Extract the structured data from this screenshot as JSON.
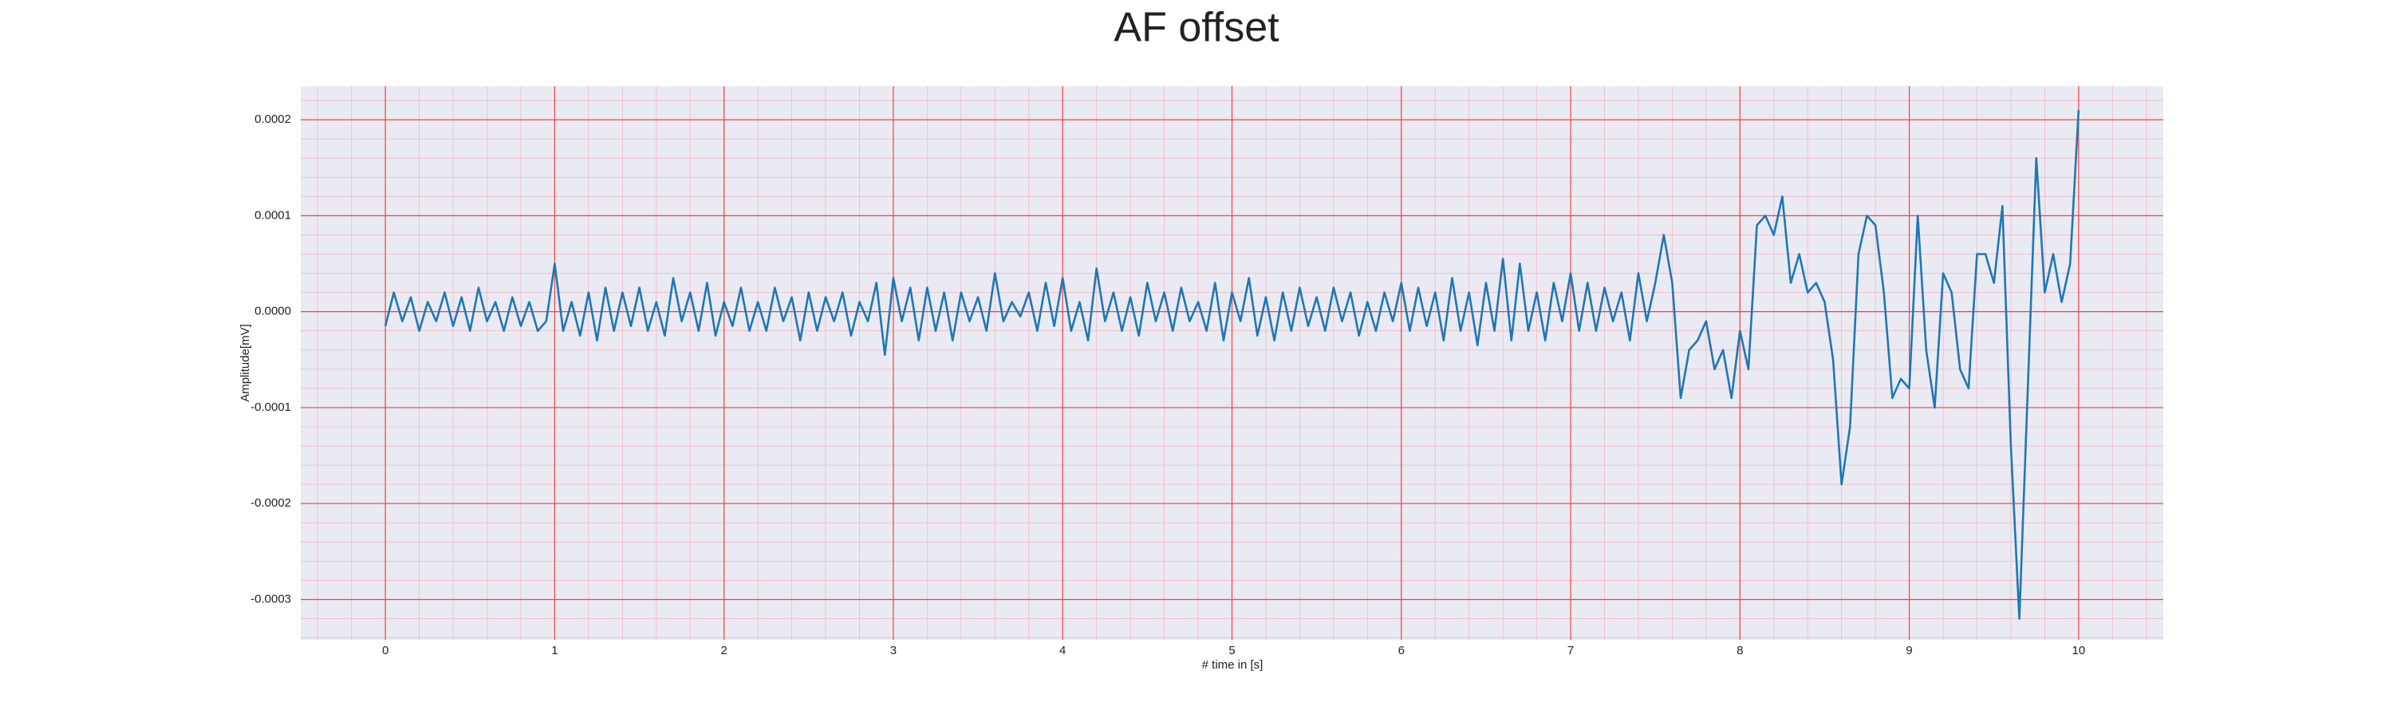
{
  "chart_data": {
    "type": "line",
    "title": "AF offset",
    "x_label": "# time in [s]",
    "y_label": "Amplitude[mV]",
    "xlim": [
      -0.5,
      10.5
    ],
    "ylim": [
      -0.000342,
      0.000235
    ],
    "xticks": [
      0,
      1,
      2,
      3,
      4,
      5,
      6,
      7,
      8,
      9,
      10
    ],
    "yticks": [
      -0.0003,
      -0.0002,
      -0.0001,
      {
        "value": 0,
        "label": "0.0000"
      },
      0.0001,
      0.0002
    ],
    "grid": true,
    "minor_grid": true,
    "grid_color": "#ee4444",
    "minor_grid_color": "#f3b8c8",
    "background": "#eaeaf2",
    "series": [
      {
        "color": "#1f77b4",
        "x": [
          0,
          0.05,
          0.1,
          0.15,
          0.2,
          0.25,
          0.3,
          0.35,
          0.4,
          0.45,
          0.5,
          0.55,
          0.6,
          0.65,
          0.7,
          0.75,
          0.8,
          0.85,
          0.9,
          0.95,
          1,
          1.05,
          1.1,
          1.15,
          1.2,
          1.25,
          1.3,
          1.35,
          1.4,
          1.45,
          1.5,
          1.55,
          1.6,
          1.65,
          1.7,
          1.75,
          1.8,
          1.85,
          1.9,
          1.95,
          2,
          2.05,
          2.1,
          2.15,
          2.2,
          2.25,
          2.3,
          2.35,
          2.4,
          2.45,
          2.5,
          2.55,
          2.6,
          2.65,
          2.7,
          2.75,
          2.8,
          2.85,
          2.9,
          2.95,
          3,
          3.05,
          3.1,
          3.15,
          3.2,
          3.25,
          3.3,
          3.35,
          3.4,
          3.45,
          3.5,
          3.55,
          3.6,
          3.65,
          3.7,
          3.75,
          3.8,
          3.85,
          3.9,
          3.95,
          4,
          4.05,
          4.1,
          4.15,
          4.2,
          4.25,
          4.3,
          4.35,
          4.4,
          4.45,
          4.5,
          4.55,
          4.6,
          4.65,
          4.7,
          4.75,
          4.8,
          4.85,
          4.9,
          4.95,
          5,
          5.05,
          5.1,
          5.15,
          5.2,
          5.25,
          5.3,
          5.35,
          5.4,
          5.45,
          5.5,
          5.55,
          5.6,
          5.65,
          5.7,
          5.75,
          5.8,
          5.85,
          5.9,
          5.95,
          6,
          6.05,
          6.1,
          6.15,
          6.2,
          6.25,
          6.3,
          6.35,
          6.4,
          6.45,
          6.5,
          6.55,
          6.6,
          6.65,
          6.7,
          6.75,
          6.8,
          6.85,
          6.9,
          6.95,
          7,
          7.05,
          7.1,
          7.15,
          7.2,
          7.25,
          7.3,
          7.35,
          7.4,
          7.45,
          7.5,
          7.55,
          7.6,
          7.65,
          7.7,
          7.75,
          7.8,
          7.85,
          7.9,
          7.95,
          8,
          8.05,
          8.1,
          8.15,
          8.2,
          8.25,
          8.3,
          8.35,
          8.4,
          8.45,
          8.5,
          8.55,
          8.6,
          8.65,
          8.7,
          8.75,
          8.8,
          8.85,
          8.9,
          8.95,
          9,
          9.05,
          9.1,
          9.15,
          9.2,
          9.25,
          9.3,
          9.35,
          9.4,
          9.45,
          9.5,
          9.55,
          9.6,
          9.65,
          9.7,
          9.75,
          9.8,
          9.85,
          9.9,
          9.95,
          10
        ],
        "values": [
          -1.5e-05,
          2e-05,
          -1e-05,
          1.5e-05,
          -2e-05,
          1e-05,
          -1e-05,
          2e-05,
          -1.5e-05,
          1.5e-05,
          -2e-05,
          2.5e-05,
          -1e-05,
          1e-05,
          -2e-05,
          1.5e-05,
          -1.5e-05,
          1e-05,
          -2e-05,
          -1e-05,
          5e-05,
          -2e-05,
          1e-05,
          -2.5e-05,
          2e-05,
          -3e-05,
          2.5e-05,
          -2e-05,
          2e-05,
          -1.5e-05,
          2.5e-05,
          -2e-05,
          1e-05,
          -2.5e-05,
          3.5e-05,
          -1e-05,
          2e-05,
          -2e-05,
          3e-05,
          -2.5e-05,
          1e-05,
          -1.5e-05,
          2.5e-05,
          -2e-05,
          1e-05,
          -2e-05,
          2.5e-05,
          -1e-05,
          1.5e-05,
          -3e-05,
          2e-05,
          -2e-05,
          1.5e-05,
          -1e-05,
          2e-05,
          -2.5e-05,
          1e-05,
          -1e-05,
          3e-05,
          -4.5e-05,
          3.5e-05,
          -1e-05,
          2.5e-05,
          -3e-05,
          2.5e-05,
          -2e-05,
          2e-05,
          -3e-05,
          2e-05,
          -1e-05,
          1.5e-05,
          -2e-05,
          4e-05,
          -1e-05,
          1e-05,
          -5e-06,
          2e-05,
          -2e-05,
          3e-05,
          -1.5e-05,
          3.5e-05,
          -2e-05,
          1e-05,
          -3e-05,
          4.5e-05,
          -1e-05,
          2e-05,
          -2e-05,
          1.5e-05,
          -2.5e-05,
          3e-05,
          -1e-05,
          2e-05,
          -2e-05,
          2.5e-05,
          -1e-05,
          1e-05,
          -2e-05,
          3e-05,
          -3e-05,
          2e-05,
          -1e-05,
          3.5e-05,
          -2.5e-05,
          1.5e-05,
          -3e-05,
          2e-05,
          -2e-05,
          2.5e-05,
          -1.5e-05,
          1.5e-05,
          -2e-05,
          2.5e-05,
          -1e-05,
          2e-05,
          -2.5e-05,
          1e-05,
          -2e-05,
          2e-05,
          -1e-05,
          3e-05,
          -2e-05,
          2.5e-05,
          -1.5e-05,
          2e-05,
          -3e-05,
          3.5e-05,
          -2e-05,
          2e-05,
          -3.5e-05,
          3e-05,
          -2e-05,
          5.5e-05,
          -3e-05,
          5e-05,
          -2e-05,
          2e-05,
          -3e-05,
          3e-05,
          -1e-05,
          4e-05,
          -2e-05,
          3e-05,
          -2e-05,
          2.5e-05,
          -1e-05,
          2e-05,
          -3e-05,
          4e-05,
          -1e-05,
          3e-05,
          8e-05,
          3e-05,
          -9e-05,
          -4e-05,
          -3e-05,
          -1e-05,
          -6e-05,
          -4e-05,
          -9e-05,
          -2e-05,
          -6e-05,
          9e-05,
          0.0001,
          8e-05,
          0.00012,
          3e-05,
          6e-05,
          2e-05,
          3e-05,
          1e-05,
          -5e-05,
          -0.00018,
          -0.00012,
          6e-05,
          0.0001,
          9e-05,
          2e-05,
          -9e-05,
          -7e-05,
          -8e-05,
          0.0001,
          -4e-05,
          -0.0001,
          4e-05,
          2e-05,
          -6e-05,
          -8e-05,
          6e-05,
          6e-05,
          3e-05,
          0.00011,
          -0.00014,
          -0.00032,
          -8e-05,
          0.00016,
          2e-05,
          6e-05,
          1e-05,
          5e-05,
          0.00021
        ]
      }
    ]
  }
}
